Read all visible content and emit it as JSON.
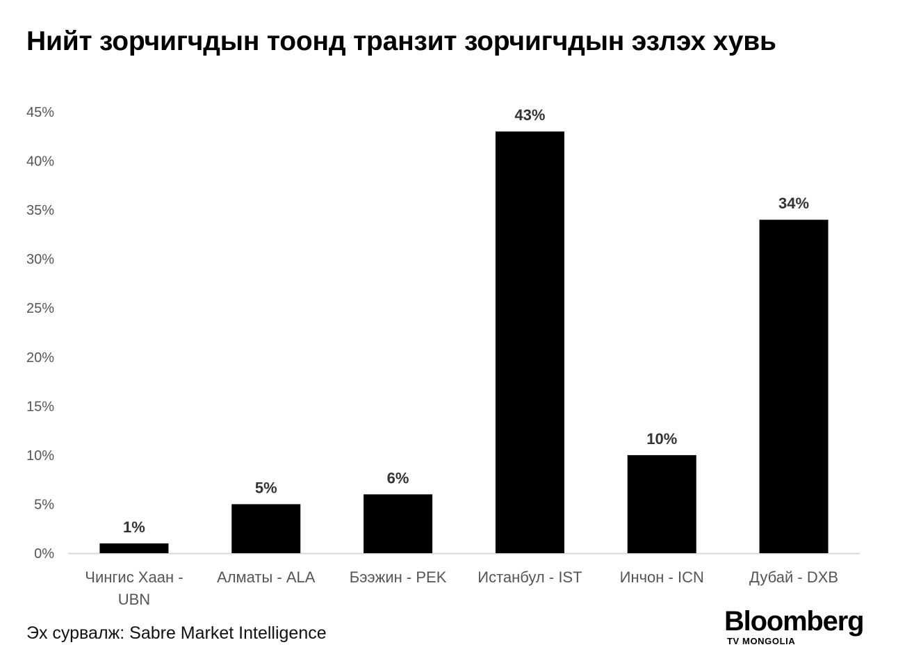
{
  "chart_data": {
    "type": "bar",
    "title": "Нийт зорчигчдын тоонд транзит зорчигчдын эзлэх хувь",
    "categories": [
      [
        "Чингис Хаан -",
        "UBN"
      ],
      [
        "Алматы - ALA"
      ],
      [
        "Бээжин - PEK"
      ],
      [
        "Истанбул - IST"
      ],
      [
        "Инчон - ICN"
      ],
      [
        "Дубай - DXB"
      ]
    ],
    "values": [
      1,
      5,
      6,
      43,
      10,
      34
    ],
    "data_labels": [
      "1%",
      "5%",
      "6%",
      "43%",
      "10%",
      "34%"
    ],
    "yticks": [
      0,
      5,
      10,
      15,
      20,
      25,
      30,
      35,
      40,
      45
    ],
    "ytick_labels": [
      "0%",
      "5%",
      "10%",
      "15%",
      "20%",
      "25%",
      "30%",
      "35%",
      "40%",
      "45%"
    ],
    "ylim": [
      0,
      45
    ],
    "xlabel": "",
    "ylabel": "",
    "grid": false,
    "legend": "none",
    "bar_color": "#000000"
  },
  "source": "Эх сурвалж: Sabre Market Intelligence",
  "logo": {
    "main": "Bloomberg",
    "sub": "TV MONGOLIA"
  }
}
